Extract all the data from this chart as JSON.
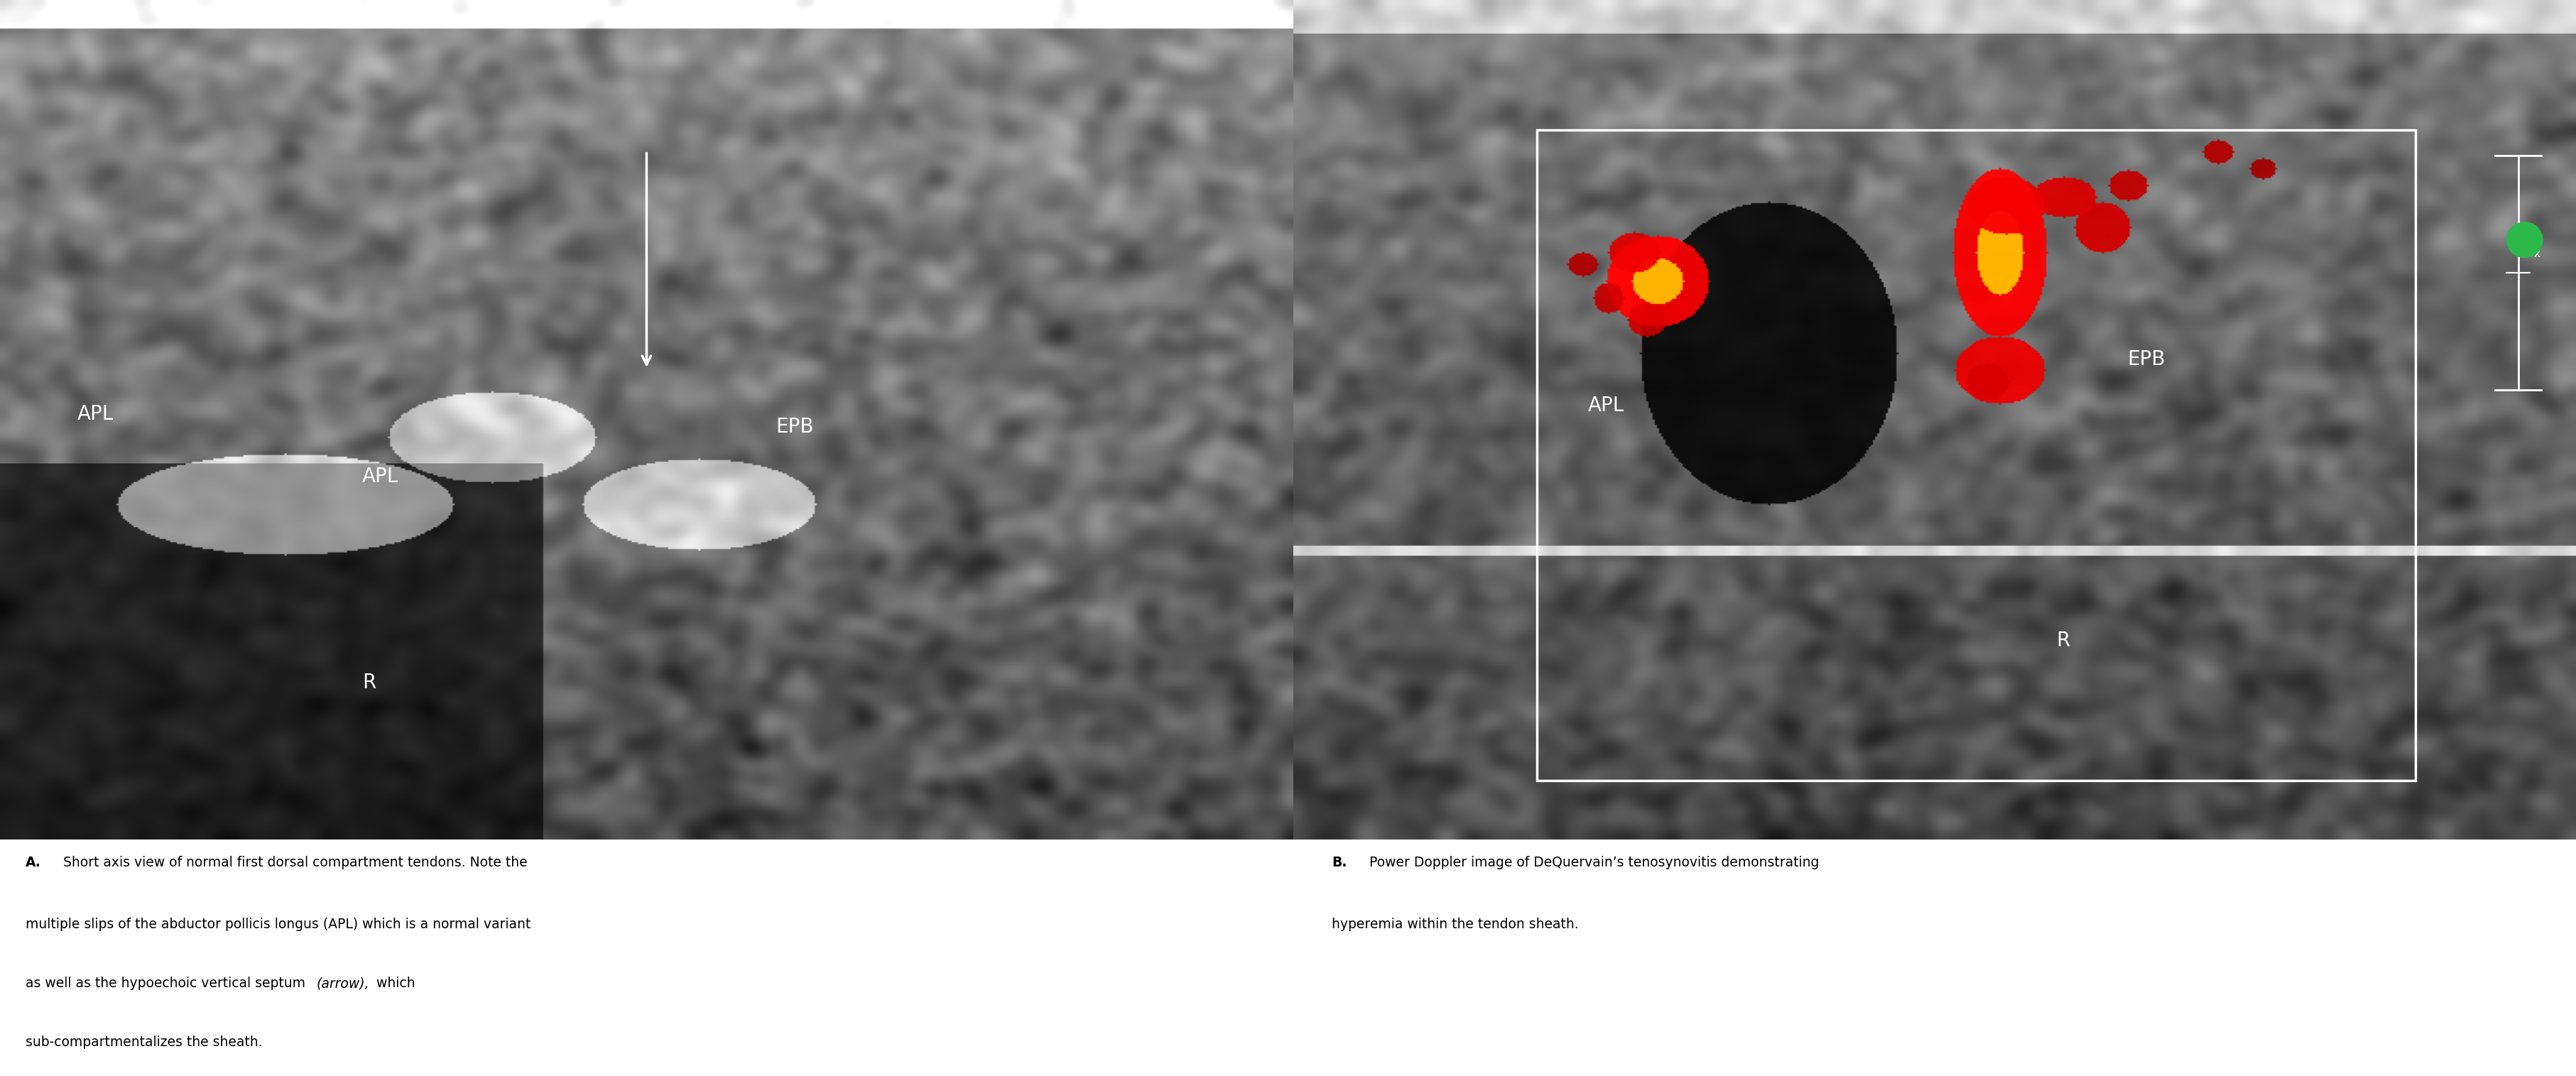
{
  "fig_width": 36.27,
  "fig_height": 15.15,
  "bg_color": "#ffffff",
  "caption_A_bold": "A.",
  "caption_A_text1": " Short axis view of normal first dorsal compartment tendons. Note the",
  "caption_A_text2": "multiple slips of the abductor pollicis longus (APL) which is a normal variant",
  "caption_A_text3_pre": "as well as the hypoechoic vertical septum ",
  "caption_A_text3_italic": "(arrow),",
  "caption_A_text3_post": " which",
  "caption_A_text4": "sub-compartmentalizes the sheath.",
  "caption_B_bold": "B.",
  "caption_B_text1": " Power Doppler image of DeQuervain’s tenosynovitis demonstrating",
  "caption_B_text2": "hyperemia within the tendon sheath.",
  "label_color": "#ffffff",
  "font_size_labels": 20,
  "font_size_caption": 13.5
}
